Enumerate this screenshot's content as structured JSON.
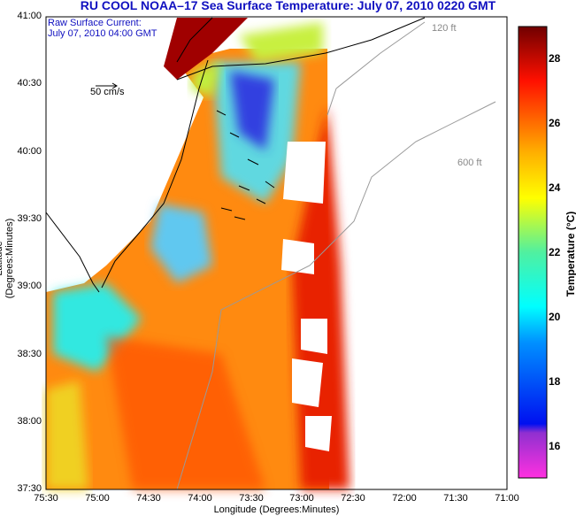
{
  "title": "RU COOL  NOAA–17  Sea Surface Temperature:  July 07, 2010 0220 GMT",
  "annotation": {
    "line1": "Raw Surface Current:",
    "line2": "July 07, 2010 04:00 GMT"
  },
  "scale_arrow_label": "50 cm/s",
  "contour_labels": [
    "120 ft",
    "600 ft"
  ],
  "x_axis": {
    "label": "Longitude (Degrees:Minutes)",
    "ticks": [
      "75:30",
      "75:00",
      "74:30",
      "74:00",
      "73:30",
      "73:00",
      "72:30",
      "72:00",
      "71:30",
      "71:00"
    ]
  },
  "y_axis": {
    "label": "Latitude (Degrees:Minutes)",
    "ticks": [
      "41:00",
      "40:30",
      "40:00",
      "39:30",
      "39:00",
      "38:30",
      "38:00",
      "37:30"
    ]
  },
  "colorbar": {
    "label": "Temperature (°C)",
    "range": [
      15,
      29
    ],
    "ticks": [
      "28",
      "26",
      "24",
      "22",
      "20",
      "18",
      "16"
    ],
    "colors": [
      "#ff30e0",
      "#8030d0",
      "#0010f0",
      "#0090ff",
      "#00ffff",
      "#40f0a0",
      "#c0f040",
      "#ffff00",
      "#ffb000",
      "#ff6000",
      "#ff1000",
      "#c00000",
      "#700000"
    ]
  }
}
